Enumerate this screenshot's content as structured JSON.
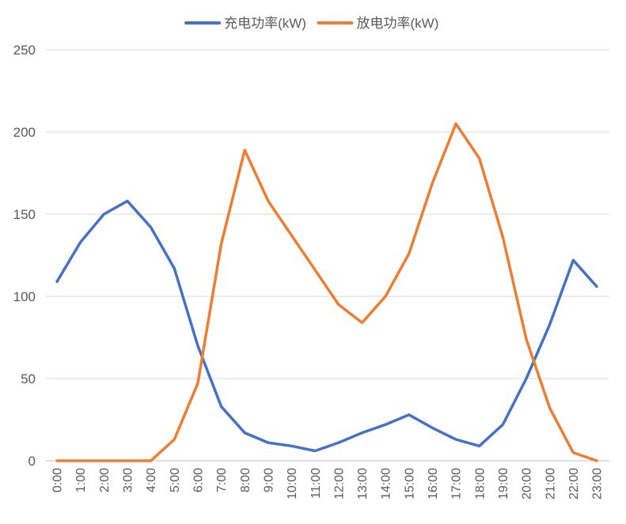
{
  "chart_data": {
    "type": "line",
    "title": "",
    "xlabel": "",
    "ylabel": "",
    "categories": [
      "0:00",
      "1:00",
      "2:00",
      "3:00",
      "4:00",
      "5:00",
      "6:00",
      "7:00",
      "8:00",
      "9:00",
      "10:00",
      "11:00",
      "12:00",
      "13:00",
      "14:00",
      "15:00",
      "16:00",
      "17:00",
      "18:00",
      "19:00",
      "20:00",
      "21:00",
      "22:00",
      "23:00"
    ],
    "ylim": [
      0,
      250
    ],
    "yticks": [
      0,
      50,
      100,
      150,
      200,
      250
    ],
    "grid": true,
    "legend_position": "top-center",
    "series": [
      {
        "name": "充电功率(kW)",
        "color": "#4472C4",
        "values": [
          109,
          133,
          150,
          158,
          142,
          117,
          70,
          33,
          17,
          11,
          9,
          6,
          11,
          17,
          22,
          28,
          20,
          13,
          9,
          22,
          50,
          83,
          122,
          106
        ]
      },
      {
        "name": "放电功率(kW)",
        "color": "#ED7D31",
        "values": [
          0,
          0,
          0,
          0,
          0,
          13,
          47,
          132,
          189,
          158,
          137,
          116,
          95,
          84,
          100,
          126,
          169,
          205,
          184,
          136,
          74,
          32,
          5,
          0
        ]
      }
    ]
  }
}
